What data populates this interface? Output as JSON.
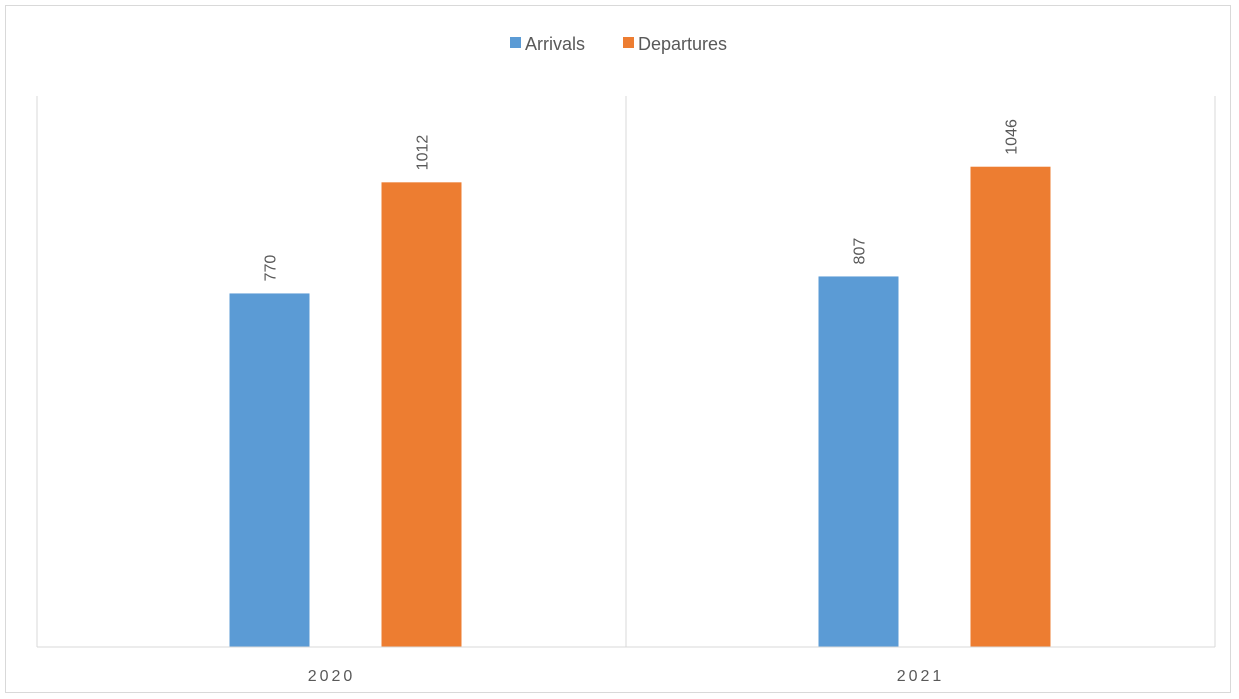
{
  "chart_data": {
    "type": "bar",
    "categories": [
      "2020",
      "2021"
    ],
    "series": [
      {
        "name": "Arrivals",
        "values": [
          770,
          807
        ],
        "color": "#5b9bd5"
      },
      {
        "name": "Departures",
        "values": [
          1012,
          1046
        ],
        "color": "#ed7d31"
      }
    ],
    "title": "",
    "xlabel": "",
    "ylabel": "",
    "ylim": [
      0,
      1200
    ],
    "legend": "top-center",
    "grid": "vertical-category-separators",
    "data_labels": "rotated-vertical",
    "colors": {
      "axis": "#d9d9d9",
      "text": "#595959",
      "frame": "#d9d9d9"
    }
  }
}
